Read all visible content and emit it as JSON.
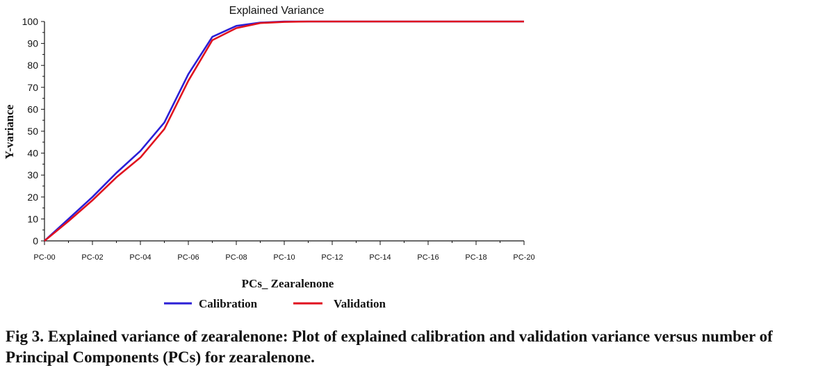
{
  "chart_data": {
    "type": "line",
    "title": "Explained Variance",
    "xlabel": "PCs_ Zearalenone",
    "ylabel": "Y-variance",
    "categories": [
      "PC-00",
      "PC-01",
      "PC-02",
      "PC-03",
      "PC-04",
      "PC-05",
      "PC-06",
      "PC-07",
      "PC-08",
      "PC-09",
      "PC-10",
      "PC-11",
      "PC-12",
      "PC-13",
      "PC-14",
      "PC-15",
      "PC-16",
      "PC-17",
      "PC-18",
      "PC-19",
      "PC-20"
    ],
    "x_tick_labels": [
      "PC-00",
      "PC-02",
      "PC-04",
      "PC-06",
      "PC-08",
      "PC-10",
      "PC-12",
      "PC-14",
      "PC-16",
      "PC-18",
      "PC-20"
    ],
    "y_ticks": [
      0,
      10,
      20,
      30,
      40,
      50,
      60,
      70,
      80,
      90,
      100
    ],
    "ylim": [
      0,
      100
    ],
    "grid": false,
    "legend_position": "bottom",
    "series": [
      {
        "name": "Calibration",
        "color": "#2b1fd6",
        "values": [
          0,
          10,
          20,
          31,
          41,
          54,
          76,
          93,
          98,
          99.5,
          100,
          100,
          100,
          100,
          100,
          100,
          100,
          100,
          100,
          100,
          100
        ]
      },
      {
        "name": "Validation",
        "color": "#e0121f",
        "values": [
          0,
          9,
          18.5,
          29,
          38,
          51,
          73,
          91.5,
          97,
          99.3,
          99.8,
          100,
          100,
          100,
          100,
          100,
          100,
          100,
          100,
          100,
          100
        ]
      }
    ]
  },
  "caption": {
    "fig_label": "Fig 3.",
    "text": "Explained variance of zearalenone: Plot of explained calibration and validation variance versus number of Principal Components (PCs) for zearalenone."
  }
}
